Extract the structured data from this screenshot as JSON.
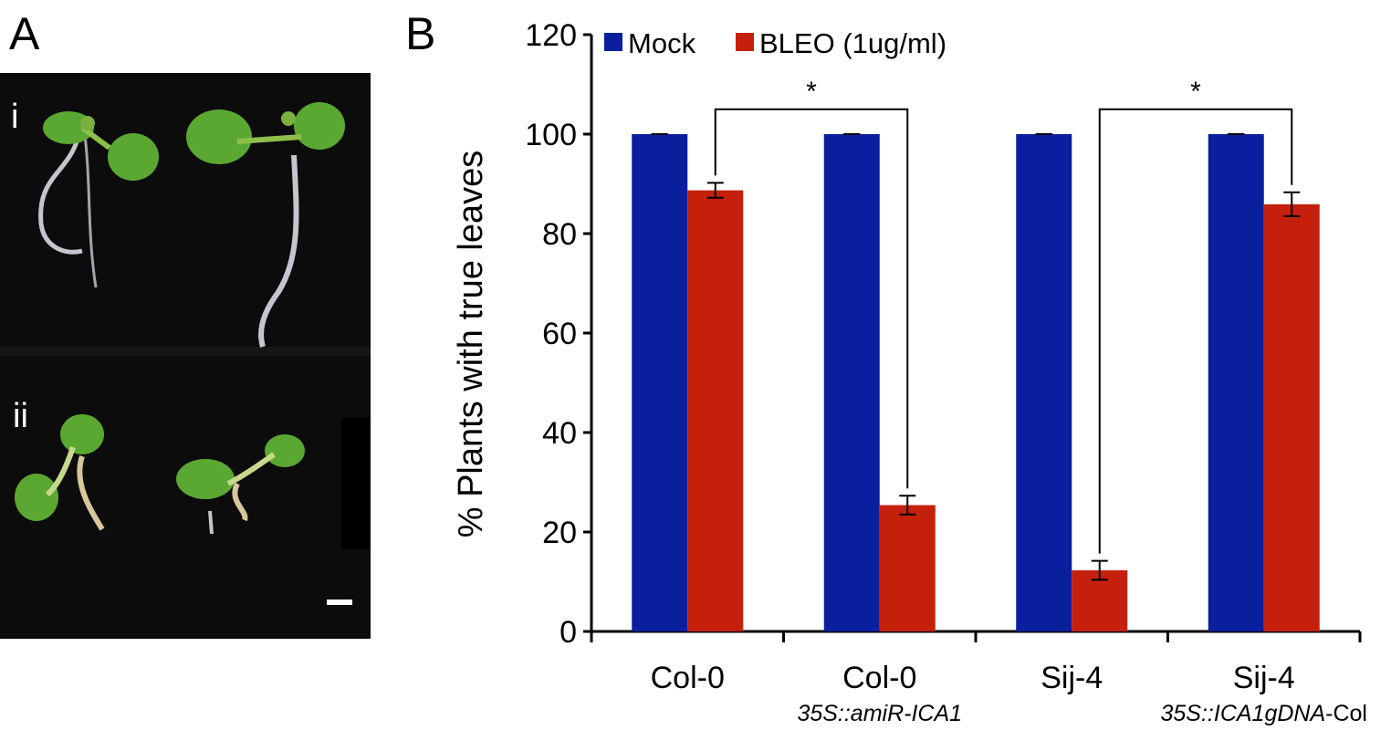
{
  "panels": {
    "a_label": "A",
    "b_label": "B"
  },
  "photo": {
    "row_labels": [
      "i",
      "ii"
    ],
    "colors": {
      "background": "#0c0c0c",
      "leaf": "#5aa832",
      "leaf_dark": "#3f8a22",
      "root": "#c9c3cf",
      "stem": "#c8d88a"
    }
  },
  "chart_data": {
    "type": "bar",
    "ylabel": "% Plants with true leaves",
    "xlabel": "",
    "ylim": [
      0,
      120
    ],
    "yticks": [
      0,
      20,
      40,
      60,
      80,
      100,
      120
    ],
    "categories": [
      {
        "line1": "Col-0",
        "line2": ""
      },
      {
        "line1": "Col-0",
        "line2": "35S::amiR-ICA1",
        "line2_parts": [
          {
            "text": "35S::amiR-ICA1",
            "italic": true
          }
        ]
      },
      {
        "line1": "Sij-4",
        "line2": ""
      },
      {
        "line1": "Sij-4",
        "line2": "35S::ICA1gDNA-Col",
        "line2_parts": [
          {
            "text": "35S::ICA1gDNA",
            "italic": true
          },
          {
            "text": "-Col",
            "italic": false
          }
        ]
      }
    ],
    "series": [
      {
        "name": "Mock",
        "color": "#0a1f9e",
        "values": [
          100,
          100,
          100,
          100
        ],
        "errors": [
          0,
          0,
          0,
          0
        ]
      },
      {
        "name": "BLEO (1ug/ml)",
        "color": "#c4200c",
        "values": [
          88.7,
          25.4,
          12.3,
          85.9
        ],
        "errors": [
          1.5,
          1.9,
          1.9,
          2.4
        ]
      }
    ],
    "legend": {
      "placement": "top-left"
    },
    "annotations": [
      {
        "text": "*",
        "from": [
          0,
          1
        ],
        "to": [
          1,
          1
        ],
        "top": 105
      },
      {
        "text": "*",
        "from": [
          2,
          1
        ],
        "to": [
          3,
          1
        ],
        "top": 105
      }
    ],
    "grid": false
  }
}
